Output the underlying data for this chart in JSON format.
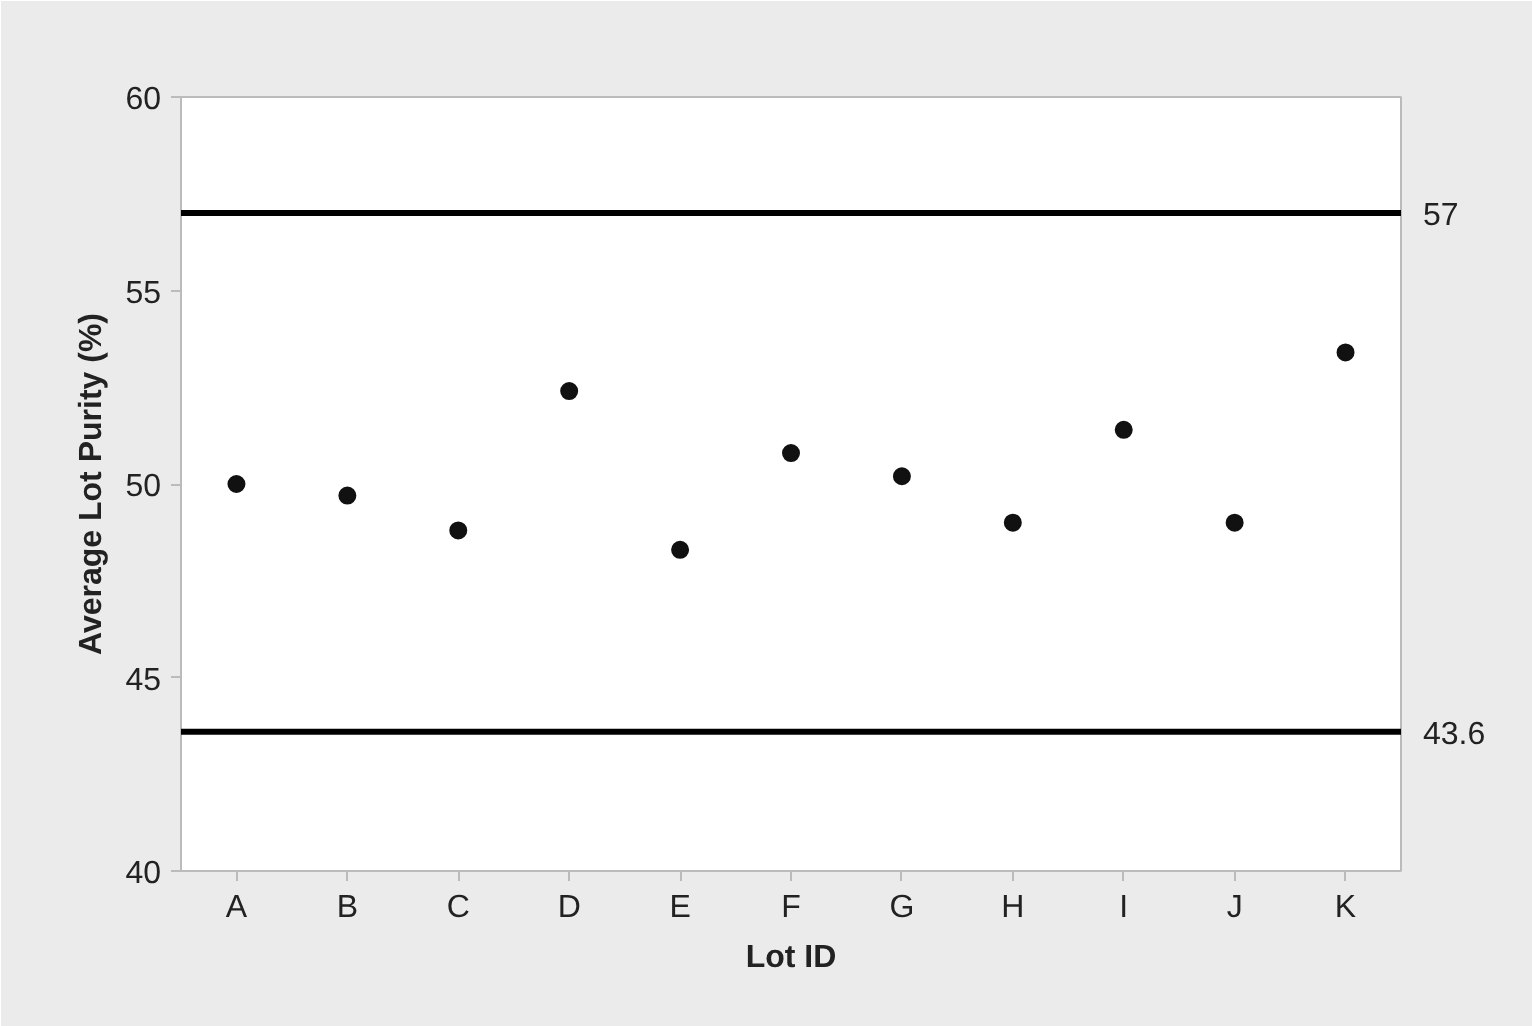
{
  "chart_data": {
    "type": "scatter",
    "xlabel": "Lot ID",
    "ylabel": "Average Lot Purity (%)",
    "categories": [
      "A",
      "B",
      "C",
      "D",
      "E",
      "F",
      "G",
      "H",
      "I",
      "J",
      "K"
    ],
    "series": [
      {
        "color": "#111111",
        "values": [
          50.0,
          49.7,
          48.8,
          52.4,
          48.3,
          50.8,
          50.2,
          49.0,
          51.4,
          49.0,
          53.4
        ]
      }
    ],
    "marker": "circle",
    "ylim": [
      40,
      60
    ],
    "yticks": [
      40,
      45,
      50,
      55,
      60
    ],
    "ref_lines": [
      {
        "axis": "y",
        "value": 57,
        "label": "57",
        "color": "#000000"
      },
      {
        "axis": "y",
        "value": 43.6,
        "label": "43.6",
        "color": "#000000"
      }
    ],
    "grid": false
  }
}
